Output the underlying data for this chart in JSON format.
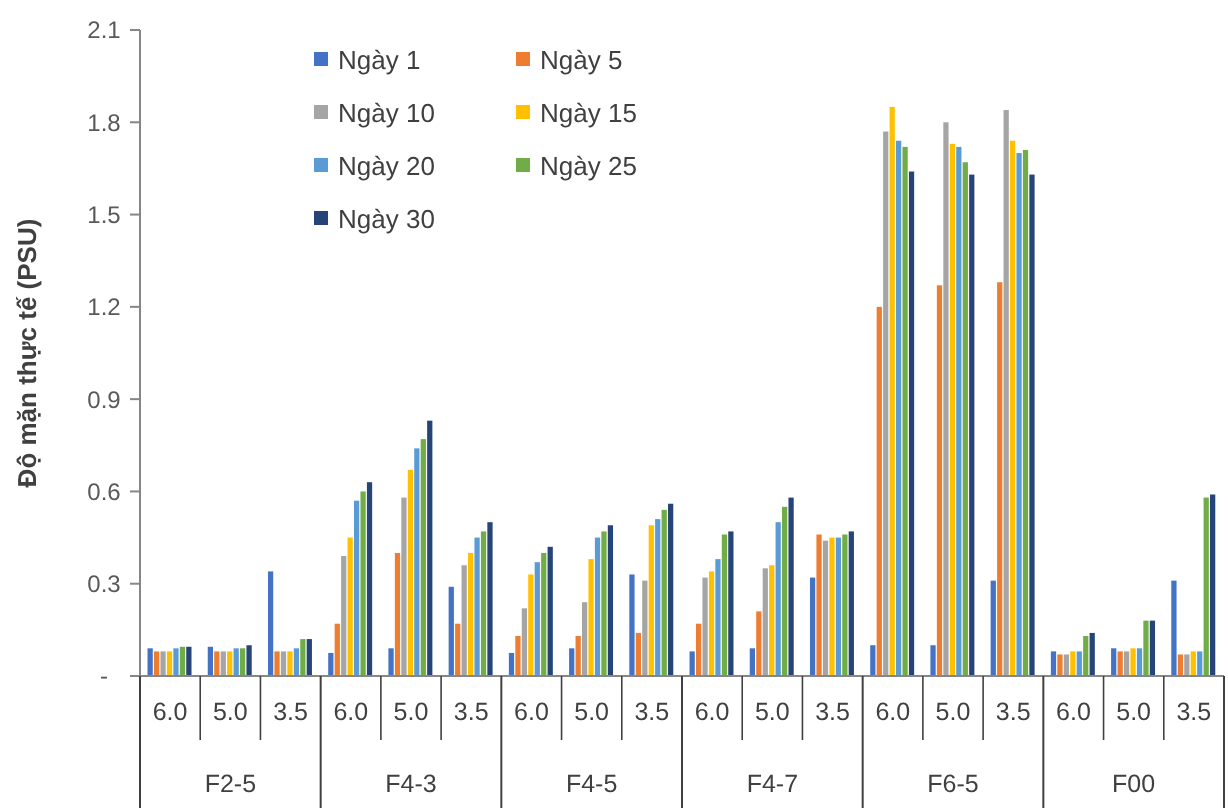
{
  "chart_data": {
    "type": "bar",
    "ylabel": "Độ mặn thực tế (PSU)",
    "categories": [
      "6.0",
      "5.0",
      "3.5",
      "6.0",
      "5.0",
      "3.5",
      "6.0",
      "5.0",
      "3.5",
      "6.0",
      "5.0",
      "3.5",
      "6.0",
      "5.0",
      "3.5",
      "6.0",
      "5.0",
      "3.5"
    ],
    "annotations": [
      "F2-5",
      "F4-3",
      "F4-5",
      "F4-7",
      "F6-5",
      "F00"
    ],
    "ylim": [
      0,
      2.1
    ],
    "yticks": [
      {
        "value": 0,
        "label": "-"
      },
      0.3,
      0.6,
      0.9,
      1.2,
      1.5,
      1.8,
      2.1
    ],
    "grid": false,
    "legend": "top left",
    "series": [
      {
        "name": "Ngày 1",
        "color": "#4472c4",
        "values": [
          0.09,
          0.095,
          0.34,
          0.075,
          0.09,
          0.29,
          0.075,
          0.09,
          0.33,
          0.08,
          0.09,
          0.32,
          0.1,
          0.1,
          0.31,
          0.08,
          0.09,
          0.31
        ]
      },
      {
        "name": "Ngày 5",
        "color": "#ed7d31",
        "values": [
          0.08,
          0.08,
          0.08,
          0.17,
          0.4,
          0.17,
          0.13,
          0.13,
          0.14,
          0.17,
          0.21,
          0.46,
          1.2,
          1.27,
          1.28,
          0.07,
          0.08,
          0.07
        ]
      },
      {
        "name": "Ngày 10",
        "color": "#a5a5a5",
        "values": [
          0.08,
          0.08,
          0.08,
          0.39,
          0.58,
          0.36,
          0.22,
          0.24,
          0.31,
          0.32,
          0.35,
          0.44,
          1.77,
          1.8,
          1.84,
          0.07,
          0.08,
          0.07
        ]
      },
      {
        "name": "Ngày 15",
        "color": "#ffc000",
        "values": [
          0.08,
          0.08,
          0.08,
          0.45,
          0.67,
          0.4,
          0.33,
          0.38,
          0.49,
          0.34,
          0.36,
          0.45,
          1.85,
          1.73,
          1.74,
          0.08,
          0.09,
          0.08
        ]
      },
      {
        "name": "Ngày 20",
        "color": "#5b9bd5",
        "values": [
          0.09,
          0.09,
          0.09,
          0.57,
          0.74,
          0.45,
          0.37,
          0.45,
          0.51,
          0.38,
          0.5,
          0.45,
          1.74,
          1.72,
          1.7,
          0.08,
          0.09,
          0.08
        ]
      },
      {
        "name": "Ngày 25",
        "color": "#70ad47",
        "values": [
          0.095,
          0.09,
          0.12,
          0.6,
          0.77,
          0.47,
          0.4,
          0.47,
          0.54,
          0.46,
          0.55,
          0.46,
          1.72,
          1.67,
          1.71,
          0.13,
          0.18,
          0.58
        ]
      },
      {
        "name": "Ngày 30",
        "color": "#264478",
        "values": [
          0.095,
          0.1,
          0.12,
          0.63,
          0.83,
          0.5,
          0.42,
          0.49,
          0.56,
          0.47,
          0.58,
          0.47,
          1.64,
          1.63,
          1.63,
          0.14,
          0.18,
          0.59
        ]
      }
    ]
  }
}
